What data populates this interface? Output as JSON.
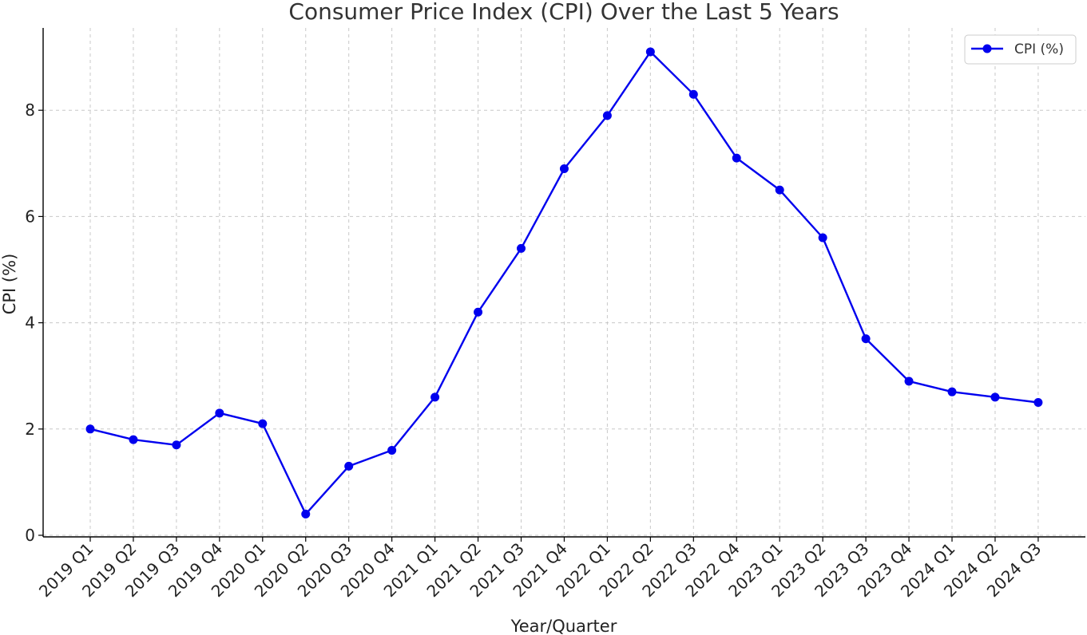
{
  "chart_data": {
    "type": "line",
    "title": "Consumer Price Index (CPI) Over the Last 5 Years",
    "xlabel": "Year/Quarter",
    "ylabel": "CPI (%)",
    "categories": [
      "2019 Q1",
      "2019 Q2",
      "2019 Q3",
      "2019 Q4",
      "2020 Q1",
      "2020 Q2",
      "2020 Q3",
      "2020 Q4",
      "2021 Q1",
      "2021 Q2",
      "2021 Q3",
      "2021 Q4",
      "2022 Q1",
      "2022 Q2",
      "2022 Q3",
      "2022 Q4",
      "2023 Q1",
      "2023 Q2",
      "2023 Q3",
      "2023 Q4",
      "2024 Q1",
      "2024 Q2",
      "2024 Q3"
    ],
    "series": [
      {
        "name": "CPI (%)",
        "color": "#0000ee",
        "values": [
          2.0,
          1.8,
          1.7,
          2.3,
          2.1,
          0.4,
          1.3,
          1.6,
          2.6,
          4.2,
          5.4,
          6.9,
          7.9,
          9.1,
          8.3,
          7.1,
          6.5,
          5.6,
          3.7,
          2.9,
          2.7,
          2.6,
          2.5
        ]
      }
    ],
    "ylim": [
      0,
      9.5
    ],
    "yticks": [
      0,
      2,
      4,
      6,
      8
    ],
    "grid": true,
    "legend_position": "top-right",
    "marker": "circle"
  }
}
